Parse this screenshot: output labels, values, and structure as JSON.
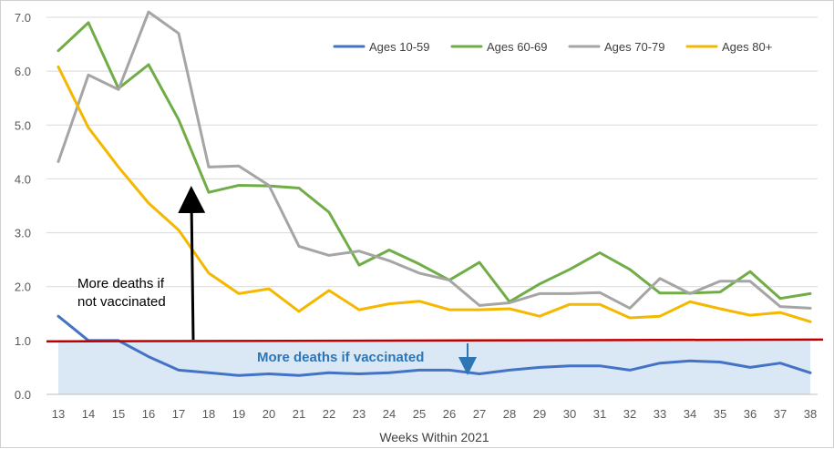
{
  "chart_data": {
    "type": "line",
    "title": "",
    "xlabel": "Weeks Within 2021",
    "ylabel": "",
    "ylim": [
      0,
      7.0
    ],
    "y_ticks": [
      "0.0",
      "1.0",
      "2.0",
      "3.0",
      "4.0",
      "5.0",
      "6.0",
      "7.0"
    ],
    "y_tick_values": [
      0,
      1,
      2,
      3,
      4,
      5,
      6,
      7
    ],
    "x": [
      13,
      14,
      15,
      16,
      17,
      18,
      19,
      20,
      21,
      22,
      23,
      24,
      25,
      26,
      27,
      28,
      29,
      30,
      31,
      32,
      33,
      34,
      35,
      36,
      37,
      38
    ],
    "x_tick_labels": [
      "13",
      "14",
      "15",
      "16",
      "17",
      "18",
      "19",
      "20",
      "21",
      "22",
      "23",
      "24",
      "25",
      "26",
      "27",
      "28",
      "29",
      "30",
      "31",
      "32",
      "33",
      "34",
      "35",
      "36",
      "37",
      "38"
    ],
    "grid": "horizontal",
    "legend_position": "top-right",
    "series": [
      {
        "name": "Ages 10-59",
        "color": "#4472c4",
        "values": [
          1.45,
          1.0,
          1.0,
          0.7,
          0.45,
          0.4,
          0.35,
          0.38,
          0.35,
          0.4,
          0.38,
          0.4,
          0.45,
          0.45,
          0.38,
          0.45,
          0.5,
          0.53,
          0.53,
          0.45,
          0.58,
          0.62,
          0.6,
          0.5,
          0.58,
          0.4
        ]
      },
      {
        "name": "Ages 60-69",
        "color": "#70ad47",
        "values": [
          6.38,
          6.9,
          5.68,
          6.12,
          5.1,
          3.75,
          3.88,
          3.87,
          3.83,
          3.38,
          2.4,
          2.68,
          2.42,
          2.12,
          2.45,
          1.72,
          2.05,
          2.32,
          2.63,
          2.32,
          1.88,
          1.88,
          1.9,
          2.28,
          1.78,
          1.87
        ]
      },
      {
        "name": "Ages 70-79",
        "color": "#a5a5a5",
        "values": [
          4.32,
          5.93,
          5.66,
          7.1,
          6.7,
          4.22,
          4.24,
          3.88,
          2.75,
          2.58,
          2.66,
          2.48,
          2.25,
          2.12,
          1.65,
          1.7,
          1.87,
          1.87,
          1.89,
          1.6,
          2.15,
          1.87,
          2.1,
          2.1,
          1.63,
          1.6
        ]
      },
      {
        "name": "Ages 80+",
        "color": "#f4b800",
        "values": [
          6.08,
          4.95,
          4.22,
          3.55,
          3.05,
          2.25,
          1.87,
          1.96,
          1.54,
          1.93,
          1.57,
          1.68,
          1.73,
          1.57,
          1.57,
          1.59,
          1.45,
          1.67,
          1.67,
          1.42,
          1.45,
          1.72,
          1.59,
          1.47,
          1.52,
          1.35
        ]
      }
    ],
    "reference_line": {
      "value": 1.0,
      "color": "#c00000"
    },
    "shaded_region": {
      "from": 0,
      "to": 1.0,
      "color": "#dae8f5"
    },
    "annotations": [
      {
        "id": "not-vaccinated",
        "lines": [
          "More deaths if",
          "not vaccinated"
        ],
        "color": "#000000",
        "arrow": "up"
      },
      {
        "id": "vaccinated",
        "lines": [
          "More deaths if vaccinated"
        ],
        "color": "#2e75b6",
        "arrow": "down"
      }
    ]
  }
}
